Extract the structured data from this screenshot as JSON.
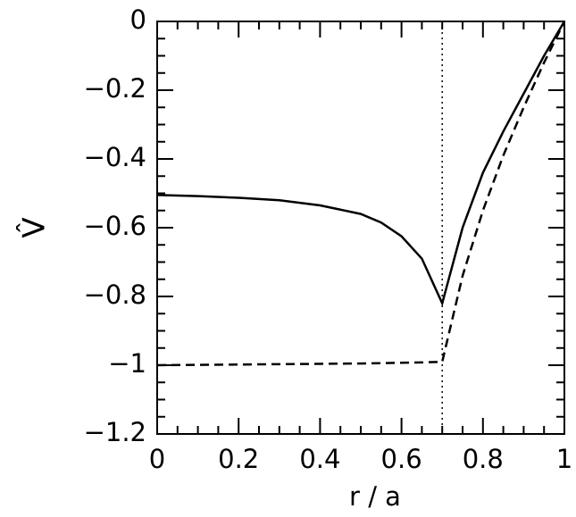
{
  "chart_data": {
    "type": "line",
    "xlabel": "r / a",
    "ylabel": "V̂",
    "x": [
      0,
      0.1,
      0.2,
      0.3,
      0.4,
      0.5,
      0.55,
      0.6,
      0.65,
      0.7,
      0.75,
      0.8,
      0.85,
      0.9,
      0.95,
      1.0
    ],
    "series": [
      {
        "color": "#000000",
        "dash": "solid",
        "values": [
          -0.505,
          -0.508,
          -0.513,
          -0.52,
          -0.535,
          -0.56,
          -0.585,
          -0.625,
          -0.69,
          -0.82,
          -0.6,
          -0.44,
          -0.32,
          -0.21,
          -0.1,
          0
        ]
      },
      {
        "color": "#000000",
        "dash": "dashed",
        "values": [
          -1,
          -0.999,
          -0.998,
          -0.997,
          -0.996,
          -0.995,
          -0.994,
          -0.993,
          -0.992,
          -0.99,
          -0.74,
          -0.55,
          -0.39,
          -0.25,
          -0.12,
          0
        ]
      }
    ],
    "vline": 0.7,
    "xlim": [
      0,
      1
    ],
    "ylim": [
      -1.2,
      0
    ],
    "xticks": [
      0,
      0.2,
      0.4,
      0.6,
      0.8,
      1
    ],
    "yticks": [
      0,
      {
        "value": -0.2,
        "label": "−0.2"
      },
      {
        "value": -0.4,
        "label": "−0.4"
      },
      {
        "value": -0.6,
        "label": "−0.6"
      },
      {
        "value": -0.8,
        "label": "−0.8"
      },
      {
        "value": -1,
        "label": "−1"
      },
      {
        "value": -1.2,
        "label": "−1.2"
      }
    ],
    "xminor": [
      0.05,
      0.1,
      0.15,
      0.25,
      0.3,
      0.35,
      0.45,
      0.5,
      0.55,
      0.65,
      0.7,
      0.75,
      0.85,
      0.9,
      0.95
    ],
    "yminor": [
      -0.05,
      -0.1,
      -0.15,
      -0.25,
      -0.3,
      -0.35,
      -0.45,
      -0.5,
      -0.55,
      -0.65,
      -0.7,
      -0.75,
      -0.85,
      -0.9,
      -0.95,
      -1.05,
      -1.1,
      -1.15
    ]
  }
}
